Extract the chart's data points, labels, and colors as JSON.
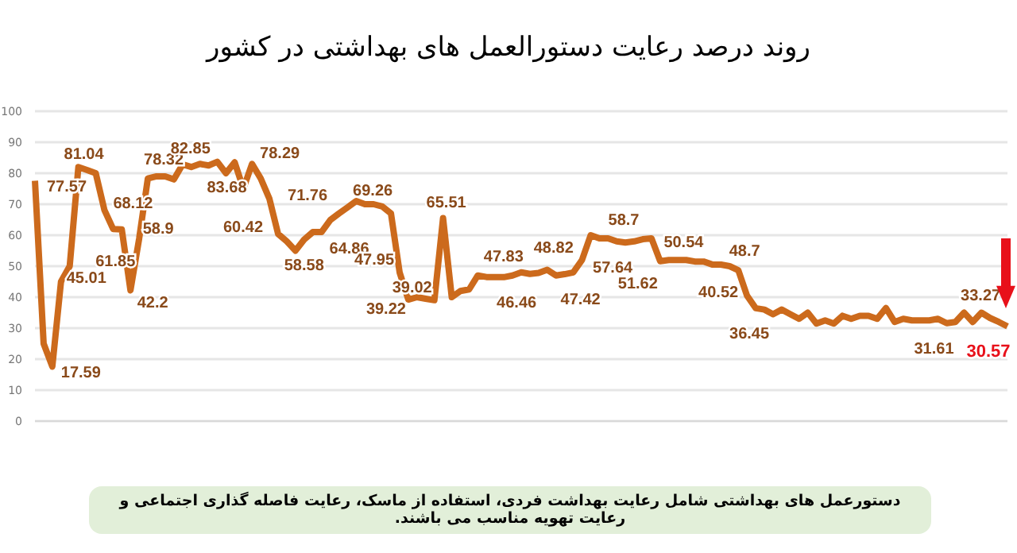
{
  "chart_data": {
    "type": "line",
    "title": "روند درصد رعایت دستورالعمل های بهداشتی در کشور",
    "categories": [
      null,
      null,
      null,
      null,
      null,
      null,
      null,
      null,
      null,
      null,
      null,
      null,
      null,
      null,
      null,
      null,
      null,
      null,
      null,
      null,
      null,
      null,
      null,
      null,
      null,
      null,
      null,
      null,
      null,
      null,
      null,
      null,
      null,
      null,
      null,
      null,
      null,
      null,
      null,
      null,
      null,
      null,
      null,
      null,
      null,
      null,
      null,
      null,
      null,
      null,
      null,
      null,
      null,
      null,
      null,
      null,
      null,
      null,
      null,
      null,
      null,
      null,
      null,
      null,
      null,
      null,
      null,
      null,
      null,
      null,
      null,
      null,
      null,
      null,
      null,
      null,
      null,
      null,
      null,
      null,
      null,
      null,
      null,
      null,
      null,
      null,
      null,
      null,
      null,
      null,
      null,
      null,
      null,
      null,
      null,
      null,
      null,
      null,
      null,
      null,
      null,
      null,
      null,
      null,
      null,
      null,
      null,
      null,
      null,
      null,
      null,
      null,
      null
    ],
    "series": [
      {
        "color": "#cc6a1c",
        "values": [
          77.57,
          25,
          17.59,
          45.01,
          50,
          82,
          81.04,
          80,
          68.12,
          62,
          61.85,
          42.2,
          58.9,
          78.32,
          79,
          79,
          78,
          82.85,
          82,
          83,
          82.5,
          83.68,
          80,
          83.5,
          75,
          83,
          78.29,
          71.76,
          60.42,
          58,
          55,
          58.58,
          61,
          61,
          64.86,
          67,
          69,
          71,
          70,
          70,
          69.26,
          67,
          47.95,
          39.22,
          40,
          39.5,
          39.02,
          65.51,
          40,
          42,
          42.5,
          47,
          46.5,
          46.5,
          46.46,
          47,
          48,
          47.5,
          47.83,
          48.82,
          47,
          47.42,
          48,
          52,
          60,
          59,
          59,
          58,
          57.64,
          58,
          58.7,
          59,
          51.62,
          52,
          52,
          52,
          51.5,
          51.5,
          50.54,
          50.5,
          50,
          48.7,
          40.52,
          36.45,
          36,
          34.5,
          36,
          34.5,
          33,
          35,
          31.5,
          32.5,
          31.5,
          34,
          33,
          34,
          34,
          33,
          36.5,
          32,
          33,
          32.5,
          32.5,
          32.5,
          33,
          31.61,
          32,
          35,
          32,
          35,
          33.27,
          32,
          30.57
        ],
        "value_labels": [
          "77.57",
          null,
          "17.59",
          "45.01",
          null,
          null,
          "81.04",
          null,
          "68.12",
          null,
          "61.85",
          "42.2",
          "58.9",
          "78.32",
          null,
          null,
          null,
          "82.85",
          null,
          null,
          null,
          "83.68",
          null,
          null,
          null,
          null,
          "78.29",
          "71.76",
          "60.42",
          null,
          null,
          "58.58",
          null,
          null,
          "64.86",
          null,
          null,
          null,
          null,
          null,
          "69.26",
          null,
          "47.95",
          "39.22",
          null,
          null,
          "39.02",
          "65.51",
          null,
          null,
          null,
          null,
          null,
          null,
          "46.46",
          null,
          null,
          null,
          "47.83",
          "48.82",
          null,
          "47.42",
          null,
          null,
          null,
          null,
          null,
          null,
          "57.64",
          null,
          "58.7",
          null,
          "51.62",
          null,
          null,
          null,
          null,
          null,
          "50.54",
          null,
          null,
          "48.7",
          "40.52",
          "36.45",
          null,
          null,
          null,
          null,
          null,
          null,
          null,
          null,
          null,
          null,
          null,
          null,
          null,
          null,
          null,
          null,
          null,
          null,
          null,
          null,
          null,
          "31.61",
          null,
          null,
          null,
          null,
          "33.27",
          null,
          "30.57"
        ]
      }
    ],
    "ylim": [
      0,
      100
    ],
    "yticks": [
      0,
      10,
      20,
      30,
      40,
      50,
      60,
      70,
      80,
      90,
      100
    ],
    "grid": "y",
    "tick_labels": "y",
    "marker": "none",
    "legend": false,
    "annotations": [
      "دستورعمل های بهداشتی شامل رعایت بهداشت فردی، استفاده از ماسک، رعایت فاصله گذاری اجتماعی و رعایت تهویه مناسب می باشند."
    ]
  }
}
